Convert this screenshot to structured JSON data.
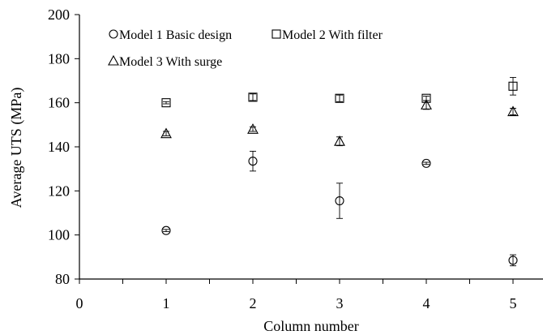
{
  "chart_data": {
    "type": "scatter",
    "xlabel": "Column number",
    "ylabel": "Average UTS (MPa)",
    "xlim": [
      0,
      5.5
    ],
    "ylim": [
      80,
      200
    ],
    "x_ticks": [
      0,
      1,
      2,
      3,
      4,
      5
    ],
    "y_ticks": [
      80,
      100,
      120,
      140,
      160,
      180,
      200
    ],
    "grid": false,
    "legend_position": "top-left",
    "series": [
      {
        "name": "Model 1 Basic design",
        "marker": "circle",
        "x": [
          1,
          2,
          3,
          4,
          5
        ],
        "y": [
          102,
          133.5,
          115.5,
          132.5,
          88.5
        ],
        "error": [
          0.5,
          4.5,
          8,
          0.5,
          2.5
        ]
      },
      {
        "name": "Model 2 With filter",
        "marker": "square",
        "x": [
          1,
          2,
          3,
          4,
          5
        ],
        "y": [
          160,
          162.5,
          162,
          162,
          167.5
        ],
        "error": [
          0.5,
          1.5,
          1.5,
          1,
          4
        ]
      },
      {
        "name": "Model 3 With surge",
        "marker": "triangle",
        "x": [
          1,
          2,
          3,
          4,
          5
        ],
        "y": [
          146,
          148,
          142.5,
          159,
          156
        ],
        "error": [
          1,
          1,
          2,
          2,
          1.5
        ]
      }
    ]
  }
}
